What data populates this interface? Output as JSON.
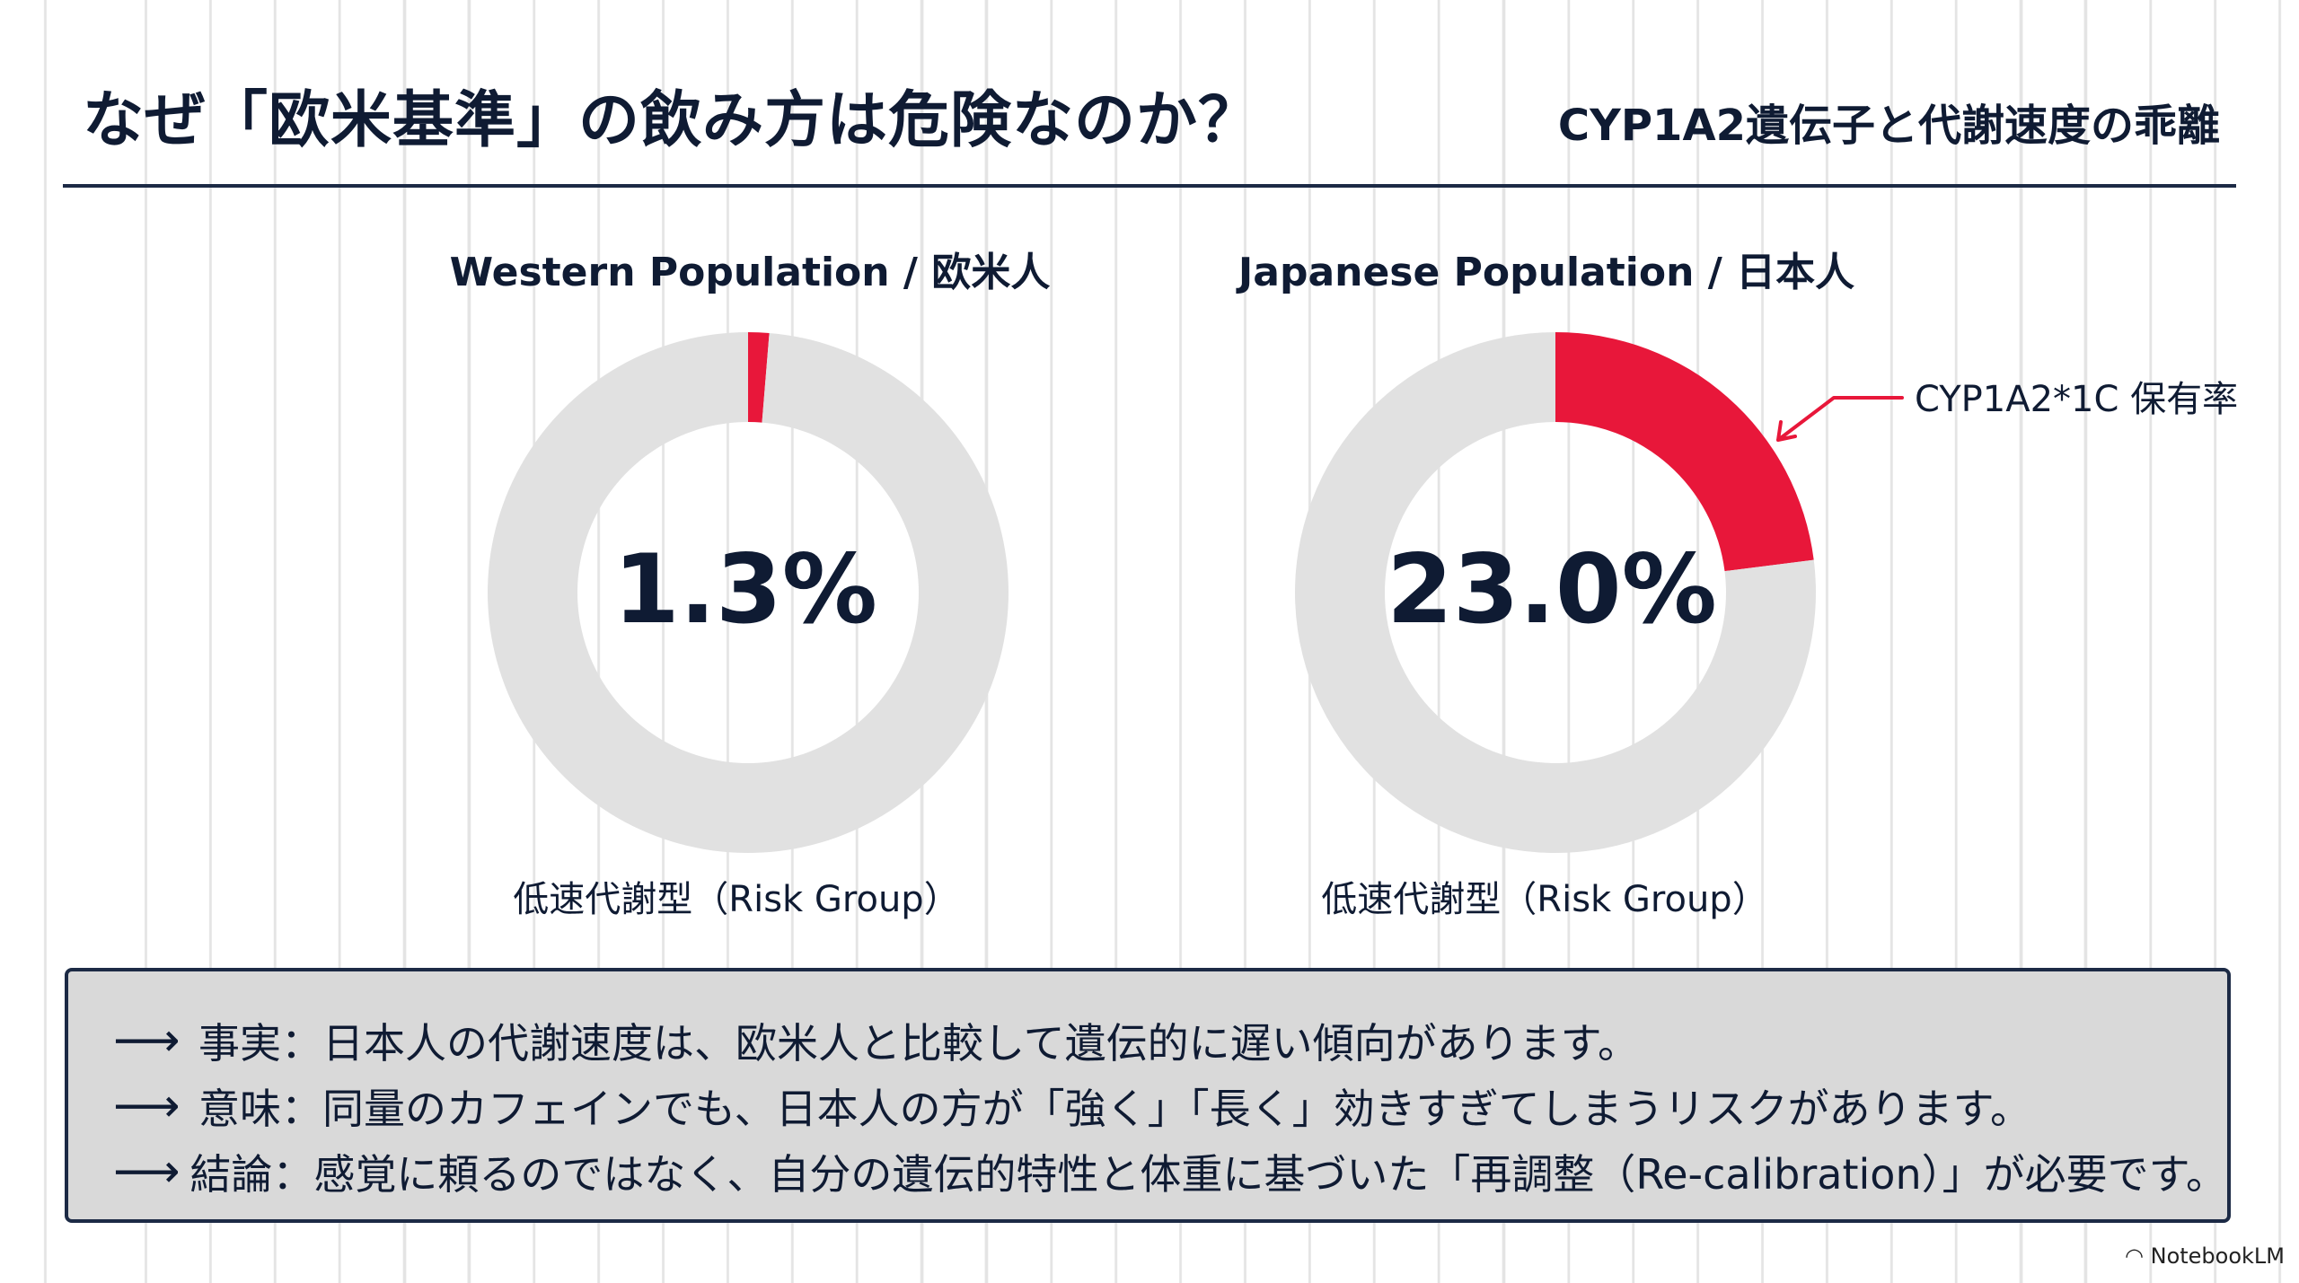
{
  "header": {
    "title": "なぜ「欧米基準」の飲み方は危険なのか？",
    "subtitle": "CYP1A2遺伝子と代謝速度の乖離"
  },
  "chart_data": [
    {
      "type": "pie",
      "title": "Western Population / 欧米人",
      "center_label": "1.3%",
      "caption": "低速代謝型（Risk Group）",
      "slices": [
        {
          "label": "低速代謝型（Risk Group）",
          "value": 1.3,
          "color": "#e8173a"
        },
        {
          "label": "",
          "value": 98.7,
          "color": "#e1e1e1"
        }
      ]
    },
    {
      "type": "pie",
      "title": "Japanese Population / 日本人",
      "center_label": "23.0%",
      "caption": "低速代謝型（Risk Group）",
      "annotation": "CYP1A2*1C 保有率",
      "slices": [
        {
          "label": "低速代謝型（Risk Group）",
          "value": 23.0,
          "color": "#e8173a"
        },
        {
          "label": "",
          "value": 77.0,
          "color": "#e1e1e1"
        }
      ]
    }
  ],
  "notes": [
    {
      "arrow": "⟶",
      "text": "事実：日本人の代謝速度は、欧米人と比較して遺伝的に遅い傾向があります。"
    },
    {
      "arrow": "⟶",
      "text": "意味：同量のカフェインでも、日本人の方が「強く」「長く」効きすぎてしまうリスクがあります。"
    },
    {
      "arrow": "⟶",
      "text": "結論：感覚に頼るのではなく、自分の遺伝的特性と体重に基づいた「再調整（Re-calibration）」が必要です。"
    }
  ],
  "branding": {
    "logo_text": "NotebookLM"
  },
  "colors": {
    "accent": "#e8173a",
    "ring": "#e1e1e1",
    "navy": "#0f1b33",
    "note_bg": "#d9d9d9"
  }
}
